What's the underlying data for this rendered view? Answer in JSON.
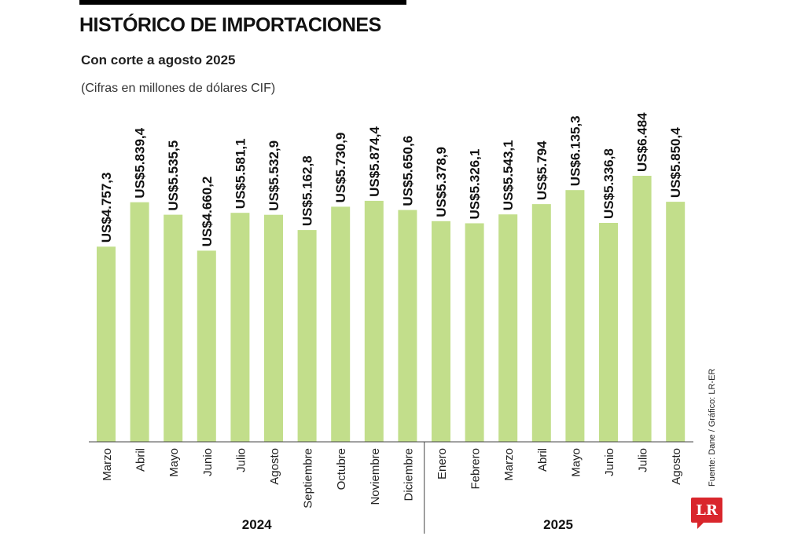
{
  "header": {
    "title": "HISTÓRICO DE IMPORTACIONES",
    "subtitle": "Con corte a agosto 2025",
    "units": "(Cifras en millones de dólares CIF)"
  },
  "source": "Fuente: Dane / Gráfico: LR-ER",
  "logo": "LR",
  "colors": {
    "bar": "#c2de8b",
    "text": "#111111"
  },
  "chart_data": {
    "type": "bar",
    "title": "HISTÓRICO DE IMPORTACIONES",
    "subtitle": "Con corte a agosto 2025",
    "ylabel": "(Cifras en millones de dólares CIF)",
    "xlabel": "",
    "categories": [
      "Marzo",
      "Abril",
      "Mayo",
      "Junio",
      "Julio",
      "Agosto",
      "Septiembre",
      "Octubre",
      "Noviembre",
      "Diciembre",
      "Enero",
      "Febrero",
      "Marzo",
      "Abril",
      "Mayo",
      "Junio",
      "Julio",
      "Agosto"
    ],
    "values": [
      4757.3,
      5839.4,
      5535.5,
      4660.2,
      5581.1,
      5532.9,
      5162.8,
      5730.9,
      5874.4,
      5650.6,
      5378.9,
      5326.1,
      5543.1,
      5794,
      6135.3,
      5336.8,
      6484,
      5850.4
    ],
    "value_labels": [
      "US$4.757,3",
      "US$5.839,4",
      "US$5.535,5",
      "US$4.660,2",
      "US$5.581,1",
      "US$5.532,9",
      "US$5.162,8",
      "US$5.730,9",
      "US$5.874,4",
      "US$5.650,6",
      "US$5.378,9",
      "US$5.326,1",
      "US$5.543,1",
      "US$5.794",
      "US$6.135,3",
      "US$5.336,8",
      "US$6.484",
      "US$5.850,4"
    ],
    "groups": [
      {
        "label": "2024",
        "count": 10
      },
      {
        "label": "2025",
        "count": 8
      }
    ],
    "ylim": [
      0,
      6484
    ],
    "grid": false,
    "legend": "none"
  }
}
